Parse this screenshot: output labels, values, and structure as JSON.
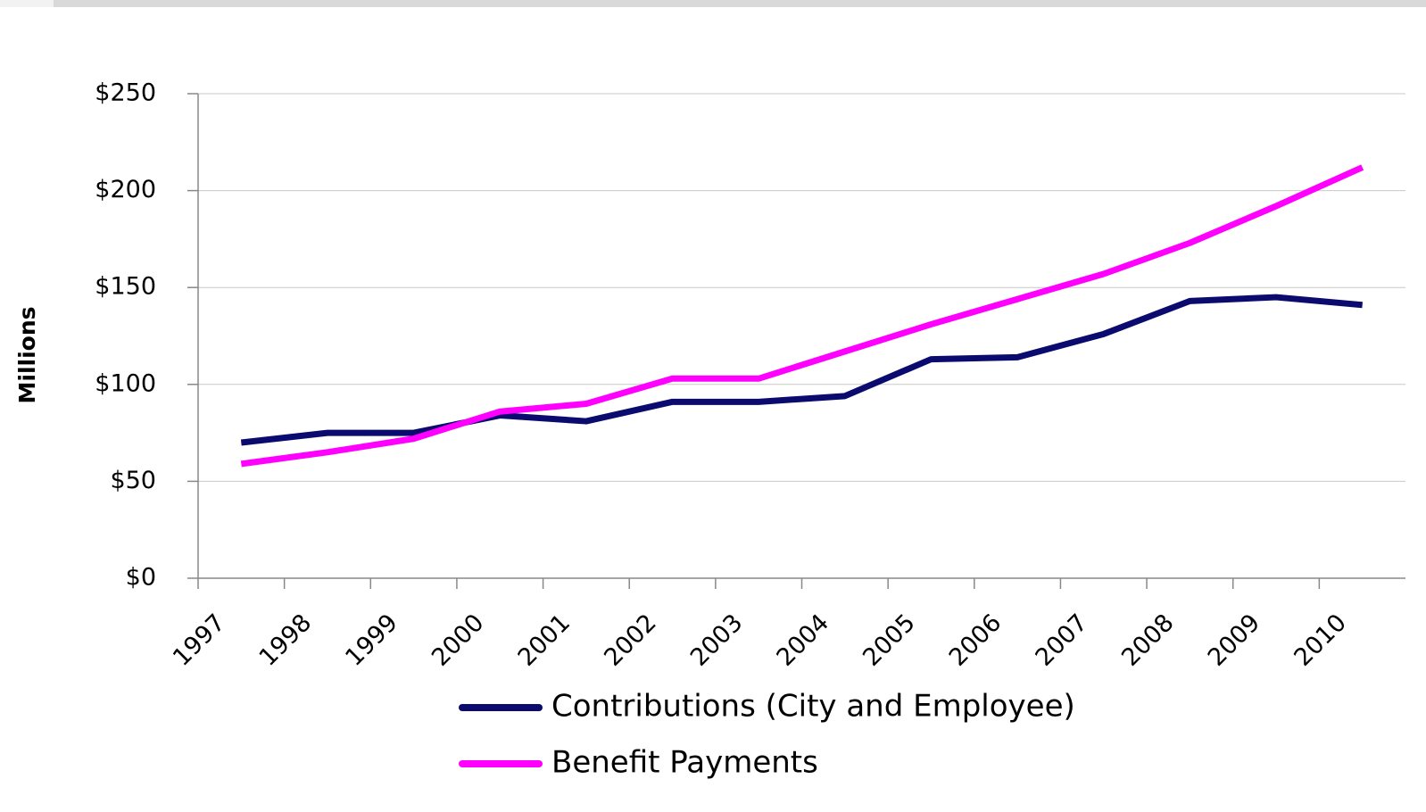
{
  "chart_data": {
    "type": "line",
    "y_label": "Millions",
    "categories": [
      "1997",
      "1998",
      "1999",
      "2000",
      "2001",
      "2002",
      "2003",
      "2004",
      "2005",
      "2006",
      "2007",
      "2008",
      "2009",
      "2010"
    ],
    "series": [
      {
        "name": "Contributions (City and Employee)",
        "color": "#0b0b6f",
        "values": [
          70,
          75,
          75,
          84,
          81,
          91,
          91,
          94,
          113,
          114,
          126,
          143,
          145,
          141
        ]
      },
      {
        "name": "Benefit Payments",
        "color": "#ff00ff",
        "values": [
          59,
          65,
          72,
          86,
          90,
          103,
          103,
          117,
          131,
          144,
          157,
          173,
          192,
          212
        ]
      }
    ],
    "ylim": [
      0,
      250
    ],
    "yticks": [
      {
        "value": 0,
        "label": "$0"
      },
      {
        "value": 50,
        "label": "$50"
      },
      {
        "value": 100,
        "label": "$100"
      },
      {
        "value": 150,
        "label": "$150"
      },
      {
        "value": 200,
        "label": "$200"
      },
      {
        "value": 250,
        "label": "$250"
      }
    ],
    "grid": true,
    "legend": "bottom"
  }
}
